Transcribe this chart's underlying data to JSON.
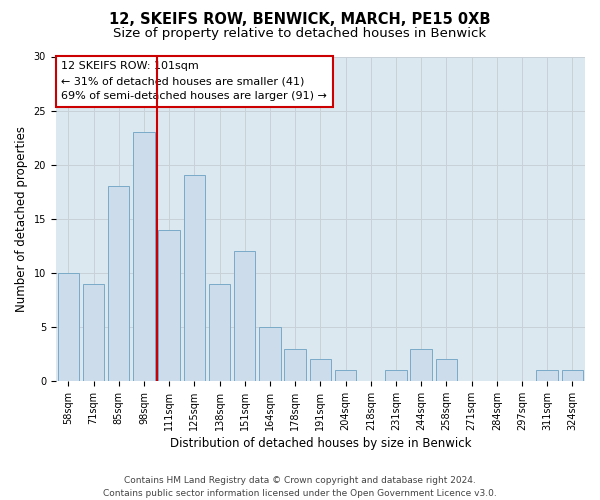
{
  "title": "12, SKEIFS ROW, BENWICK, MARCH, PE15 0XB",
  "subtitle": "Size of property relative to detached houses in Benwick",
  "xlabel": "Distribution of detached houses by size in Benwick",
  "ylabel": "Number of detached properties",
  "categories": [
    "58sqm",
    "71sqm",
    "85sqm",
    "98sqm",
    "111sqm",
    "125sqm",
    "138sqm",
    "151sqm",
    "164sqm",
    "178sqm",
    "191sqm",
    "204sqm",
    "218sqm",
    "231sqm",
    "244sqm",
    "258sqm",
    "271sqm",
    "284sqm",
    "297sqm",
    "311sqm",
    "324sqm"
  ],
  "values": [
    10,
    9,
    18,
    23,
    14,
    19,
    9,
    12,
    5,
    3,
    2,
    1,
    0,
    1,
    3,
    2,
    0,
    0,
    0,
    1,
    1
  ],
  "bar_color": "#ccdcea",
  "bar_edgecolor": "#7aaac8",
  "vline_color": "#cc0000",
  "vline_x": 3.5,
  "annotation_text": "12 SKEIFS ROW: 101sqm\n← 31% of detached houses are smaller (41)\n69% of semi-detached houses are larger (91) →",
  "annotation_box_color": "#ffffff",
  "annotation_box_edgecolor": "#cc0000",
  "ylim": [
    0,
    30
  ],
  "yticks": [
    0,
    5,
    10,
    15,
    20,
    25,
    30
  ],
  "grid_color": "#c8d0d8",
  "bg_color": "#dce8f0",
  "footer": "Contains HM Land Registry data © Crown copyright and database right 2024.\nContains public sector information licensed under the Open Government Licence v3.0.",
  "title_fontsize": 10.5,
  "subtitle_fontsize": 9.5,
  "xlabel_fontsize": 8.5,
  "ylabel_fontsize": 8.5,
  "tick_fontsize": 7,
  "annotation_fontsize": 8,
  "footer_fontsize": 6.5
}
